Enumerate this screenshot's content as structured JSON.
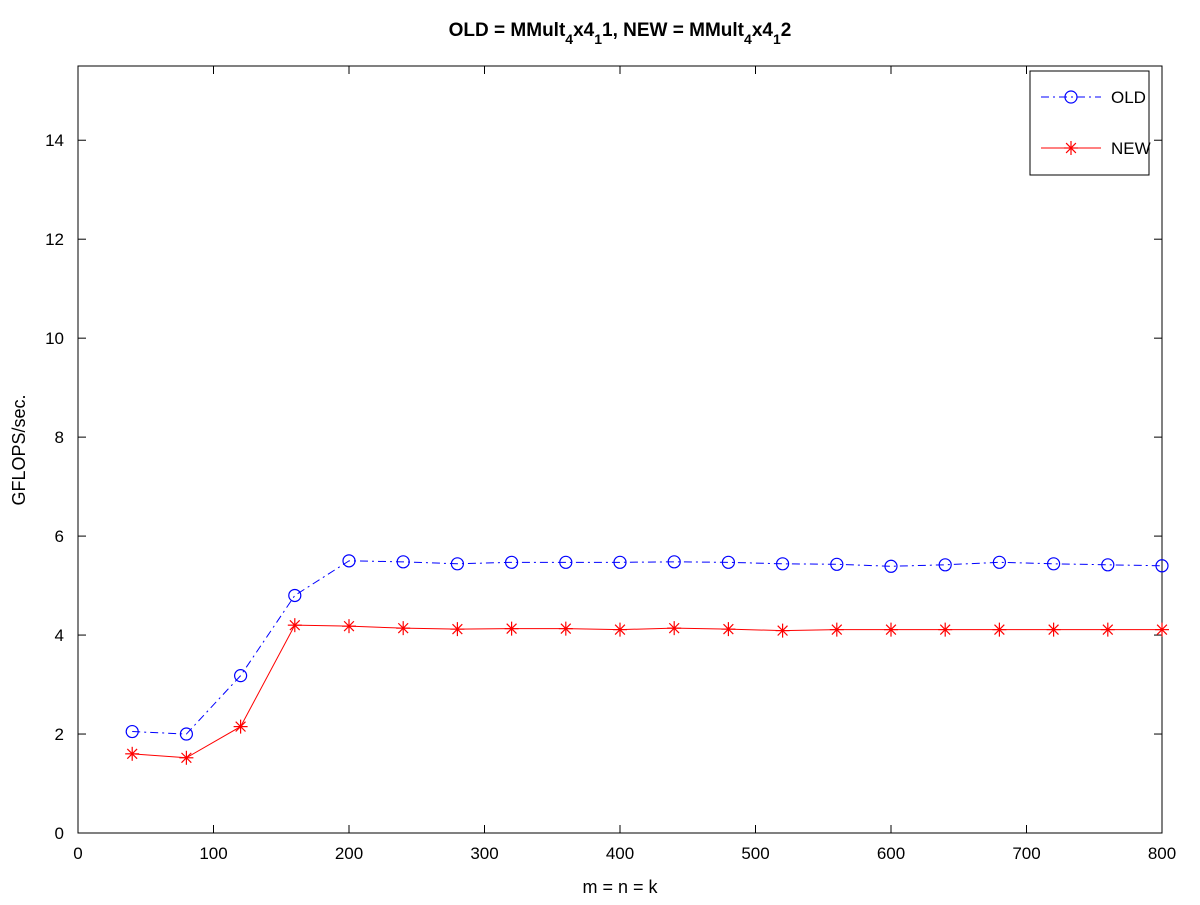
{
  "chart_data": {
    "type": "line",
    "title_parts": [
      {
        "t": "OLD = MMult",
        "sub": false
      },
      {
        "t": "4",
        "sub": true
      },
      {
        "t": "x4",
        "sub": false
      },
      {
        "t": "1",
        "sub": true
      },
      {
        "t": "1, NEW = MMult",
        "sub": false
      },
      {
        "t": "4",
        "sub": true
      },
      {
        "t": "x4",
        "sub": false
      },
      {
        "t": "1",
        "sub": true
      },
      {
        "t": "2",
        "sub": false
      }
    ],
    "xlabel": "m = n = k",
    "ylabel": "GFLOPS/sec.",
    "xlim": [
      0,
      800
    ],
    "ylim": [
      0,
      15.5
    ],
    "xticks": [
      0,
      100,
      200,
      300,
      400,
      500,
      600,
      700,
      800
    ],
    "yticks": [
      0,
      2,
      4,
      6,
      8,
      10,
      12,
      14
    ],
    "grid": false,
    "legend_position": "top-right",
    "x": [
      40,
      80,
      120,
      160,
      200,
      240,
      280,
      320,
      360,
      400,
      440,
      480,
      520,
      560,
      600,
      640,
      680,
      720,
      760,
      800
    ],
    "series": [
      {
        "name": "OLD",
        "color": "#0000ff",
        "marker": "circle",
        "line_style": "dash-dot",
        "values": [
          2.05,
          2.0,
          3.18,
          4.8,
          5.5,
          5.48,
          5.44,
          5.47,
          5.47,
          5.47,
          5.48,
          5.47,
          5.44,
          5.43,
          5.39,
          5.42,
          5.47,
          5.44,
          5.42,
          5.4
        ]
      },
      {
        "name": "NEW",
        "color": "#ff0000",
        "marker": "asterisk",
        "line_style": "solid",
        "values": [
          1.6,
          1.52,
          2.15,
          4.2,
          4.18,
          4.14,
          4.12,
          4.13,
          4.13,
          4.11,
          4.14,
          4.12,
          4.09,
          4.11,
          4.11,
          4.11,
          4.11,
          4.11,
          4.11,
          4.11
        ]
      }
    ]
  }
}
